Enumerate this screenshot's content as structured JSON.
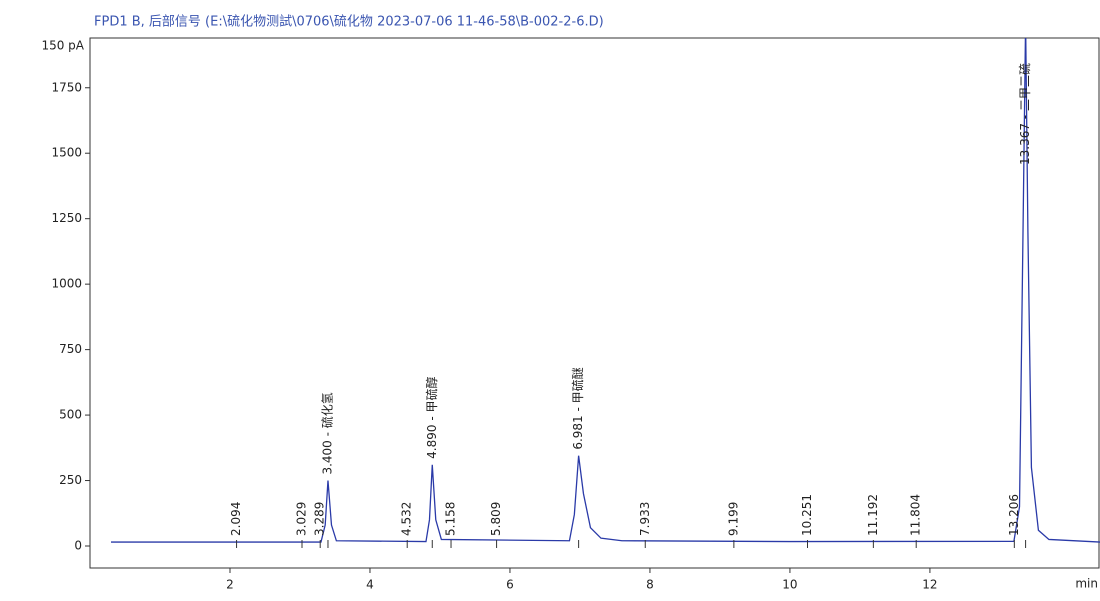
{
  "chart_data": {
    "type": "line",
    "title": "FPD1 B, 后部信号 (E:\\硫化物测試\\0706\\硫化物 2023-07-06 11-46-58\\B-002-2-6.D)",
    "y_unit_label": "150 pA",
    "x_label": "min",
    "xlim": [
      0,
      14.43
    ],
    "xticks": [
      2,
      4,
      6,
      8,
      10,
      12
    ],
    "ylim": [
      -84,
      1940
    ],
    "yticks": [
      0,
      250,
      500,
      750,
      1000,
      1250,
      1500,
      1750
    ],
    "series": [
      {
        "name": "FPD1 B",
        "color": "#2a3aa8",
        "x": [
          0.3,
          2.0,
          3.3,
          3.36,
          3.4,
          3.45,
          3.52,
          4.8,
          4.85,
          4.89,
          4.94,
          5.02,
          6.85,
          6.92,
          6.981,
          7.05,
          7.15,
          7.3,
          7.6,
          10.0,
          13.2,
          13.28,
          13.33,
          13.367,
          13.4,
          13.45,
          13.55,
          13.7,
          14.43
        ],
        "values": [
          15,
          15,
          15,
          80,
          250,
          80,
          20,
          17,
          100,
          310,
          100,
          25,
          20,
          120,
          345,
          200,
          70,
          30,
          20,
          17,
          18,
          150,
          1200,
          2000,
          1200,
          300,
          60,
          25,
          15
        ]
      }
    ],
    "peaks": [
      {
        "time": 2.094,
        "label": "2.094"
      },
      {
        "time": 3.029,
        "label": "3.029"
      },
      {
        "time": 3.289,
        "label": "3.289"
      },
      {
        "time": 3.4,
        "label": "3.400 - 硫化氢",
        "height": 250
      },
      {
        "time": 4.532,
        "label": "4.532"
      },
      {
        "time": 4.89,
        "label": "4.890 - 甲硫醇",
        "height": 310
      },
      {
        "time": 5.158,
        "label": "5.158"
      },
      {
        "time": 5.809,
        "label": "5.809"
      },
      {
        "time": 6.981,
        "label": "6.981 - 甲硫醚",
        "height": 345
      },
      {
        "time": 7.933,
        "label": "7.933"
      },
      {
        "time": 9.199,
        "label": "9.199"
      },
      {
        "time": 10.251,
        "label": "10.251"
      },
      {
        "time": 11.192,
        "label": "11.192"
      },
      {
        "time": 11.804,
        "label": "11.804"
      },
      {
        "time": 13.206,
        "label": "13.206"
      },
      {
        "time": 13.367,
        "label": "13.367 - 二甲二硫",
        "height": 2000
      }
    ]
  }
}
